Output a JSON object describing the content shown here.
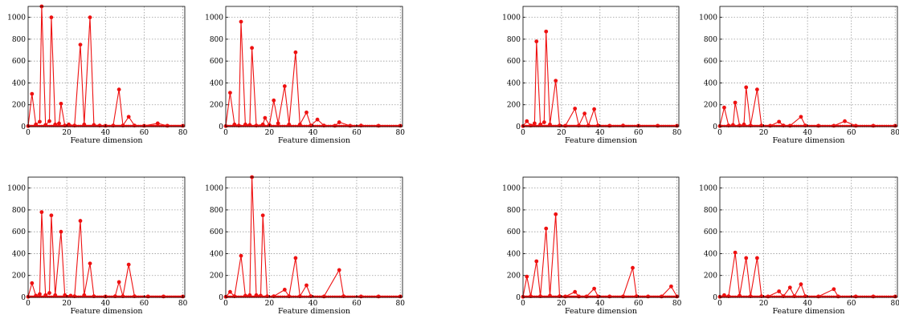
{
  "style": {
    "series_color": "#ee1111",
    "grid_color": "#9a9a9a",
    "axis_color": "#000000",
    "grid": true,
    "marker": "filled-circle"
  },
  "chart_data": [
    {
      "type": "line",
      "xlabel": "Feature dimension",
      "xlim": [
        0,
        81
      ],
      "ylim": [
        0,
        1100
      ],
      "xticks": [
        0,
        20,
        40,
        60,
        80
      ],
      "yticks": [
        0,
        200,
        400,
        600,
        800,
        1000
      ],
      "points": [
        [
          0,
          5
        ],
        [
          2,
          300
        ],
        [
          4,
          20
        ],
        [
          6,
          45
        ],
        [
          7,
          1100
        ],
        [
          9,
          15
        ],
        [
          11,
          50
        ],
        [
          12,
          1000
        ],
        [
          14,
          20
        ],
        [
          16,
          30
        ],
        [
          17,
          210
        ],
        [
          19,
          10
        ],
        [
          21,
          20
        ],
        [
          24,
          10
        ],
        [
          27,
          750
        ],
        [
          29,
          20
        ],
        [
          32,
          1000
        ],
        [
          34,
          15
        ],
        [
          37,
          10
        ],
        [
          40,
          8
        ],
        [
          44,
          10
        ],
        [
          47,
          340
        ],
        [
          49,
          10
        ],
        [
          52,
          90
        ],
        [
          55,
          10
        ],
        [
          60,
          8
        ],
        [
          67,
          30
        ],
        [
          72,
          8
        ],
        [
          80,
          8
        ]
      ]
    },
    {
      "type": "line",
      "xlabel": "Feature dimension",
      "xlim": [
        0,
        81
      ],
      "ylim": [
        0,
        1100
      ],
      "xticks": [
        0,
        20,
        40,
        60,
        80
      ],
      "yticks": [
        0,
        200,
        400,
        600,
        800,
        1000
      ],
      "points": [
        [
          0,
          5
        ],
        [
          2,
          310
        ],
        [
          4,
          20
        ],
        [
          6,
          10
        ],
        [
          7,
          960
        ],
        [
          9,
          20
        ],
        [
          11,
          15
        ],
        [
          12,
          720
        ],
        [
          14,
          10
        ],
        [
          17,
          20
        ],
        [
          18,
          80
        ],
        [
          20,
          15
        ],
        [
          22,
          240
        ],
        [
          24,
          30
        ],
        [
          27,
          370
        ],
        [
          29,
          20
        ],
        [
          32,
          680
        ],
        [
          34,
          20
        ],
        [
          37,
          130
        ],
        [
          39,
          10
        ],
        [
          42,
          65
        ],
        [
          45,
          10
        ],
        [
          50,
          8
        ],
        [
          52,
          40
        ],
        [
          57,
          8
        ],
        [
          62,
          10
        ],
        [
          70,
          8
        ],
        [
          80,
          8
        ]
      ]
    },
    {
      "type": "line",
      "xlabel": "Feature dimension",
      "xlim": [
        0,
        81
      ],
      "ylim": [
        0,
        1100
      ],
      "xticks": [
        0,
        20,
        40,
        60,
        80
      ],
      "yticks": [
        0,
        200,
        400,
        600,
        800,
        1000
      ],
      "points": [
        [
          0,
          5
        ],
        [
          2,
          50
        ],
        [
          4,
          10
        ],
        [
          6,
          30
        ],
        [
          7,
          780
        ],
        [
          9,
          20
        ],
        [
          11,
          40
        ],
        [
          12,
          870
        ],
        [
          14,
          20
        ],
        [
          17,
          420
        ],
        [
          19,
          10
        ],
        [
          22,
          8
        ],
        [
          27,
          165
        ],
        [
          29,
          10
        ],
        [
          32,
          120
        ],
        [
          34,
          10
        ],
        [
          37,
          160
        ],
        [
          39,
          10
        ],
        [
          45,
          8
        ],
        [
          52,
          10
        ],
        [
          60,
          8
        ],
        [
          70,
          8
        ],
        [
          80,
          8
        ]
      ]
    },
    {
      "type": "line",
      "xlabel": "Feature dimension",
      "xlim": [
        0,
        81
      ],
      "ylim": [
        0,
        1100
      ],
      "xticks": [
        0,
        20,
        40,
        60,
        80
      ],
      "yticks": [
        0,
        200,
        400,
        600,
        800,
        1000
      ],
      "points": [
        [
          0,
          5
        ],
        [
          2,
          175
        ],
        [
          4,
          10
        ],
        [
          6,
          15
        ],
        [
          7,
          220
        ],
        [
          9,
          10
        ],
        [
          11,
          20
        ],
        [
          12,
          360
        ],
        [
          14,
          10
        ],
        [
          17,
          340
        ],
        [
          19,
          10
        ],
        [
          23,
          8
        ],
        [
          27,
          45
        ],
        [
          29,
          10
        ],
        [
          32,
          8
        ],
        [
          37,
          90
        ],
        [
          39,
          10
        ],
        [
          45,
          8
        ],
        [
          52,
          8
        ],
        [
          57,
          50
        ],
        [
          62,
          8
        ],
        [
          70,
          8
        ],
        [
          80,
          8
        ]
      ]
    },
    {
      "type": "line",
      "xlabel": "Feature dimension",
      "xlim": [
        0,
        81
      ],
      "ylim": [
        0,
        1100
      ],
      "xticks": [
        0,
        20,
        40,
        60,
        80
      ],
      "yticks": [
        0,
        200,
        400,
        600,
        800,
        1000
      ],
      "points": [
        [
          0,
          5
        ],
        [
          2,
          130
        ],
        [
          4,
          15
        ],
        [
          6,
          30
        ],
        [
          7,
          780
        ],
        [
          9,
          20
        ],
        [
          11,
          40
        ],
        [
          12,
          750
        ],
        [
          14,
          20
        ],
        [
          17,
          600
        ],
        [
          19,
          20
        ],
        [
          22,
          15
        ],
        [
          24,
          10
        ],
        [
          27,
          700
        ],
        [
          29,
          20
        ],
        [
          32,
          310
        ],
        [
          34,
          10
        ],
        [
          40,
          8
        ],
        [
          45,
          10
        ],
        [
          47,
          140
        ],
        [
          49,
          10
        ],
        [
          52,
          300
        ],
        [
          55,
          10
        ],
        [
          62,
          8
        ],
        [
          70,
          8
        ],
        [
          80,
          8
        ]
      ]
    },
    {
      "type": "line",
      "xlabel": "Feature dimension",
      "xlim": [
        0,
        81
      ],
      "ylim": [
        0,
        1100
      ],
      "xticks": [
        0,
        20,
        40,
        60,
        80
      ],
      "yticks": [
        0,
        200,
        400,
        600,
        800,
        1000
      ],
      "points": [
        [
          0,
          5
        ],
        [
          2,
          50
        ],
        [
          4,
          10
        ],
        [
          7,
          380
        ],
        [
          9,
          15
        ],
        [
          11,
          20
        ],
        [
          12,
          1100
        ],
        [
          14,
          20
        ],
        [
          16,
          15
        ],
        [
          17,
          750
        ],
        [
          19,
          10
        ],
        [
          22,
          10
        ],
        [
          27,
          70
        ],
        [
          29,
          10
        ],
        [
          32,
          360
        ],
        [
          34,
          10
        ],
        [
          37,
          110
        ],
        [
          39,
          10
        ],
        [
          45,
          8
        ],
        [
          52,
          250
        ],
        [
          54,
          10
        ],
        [
          62,
          8
        ],
        [
          70,
          8
        ],
        [
          80,
          8
        ]
      ]
    },
    {
      "type": "line",
      "xlabel": "Feature dimension",
      "xlim": [
        0,
        81
      ],
      "ylim": [
        0,
        1100
      ],
      "xticks": [
        0,
        20,
        40,
        60,
        80
      ],
      "yticks": [
        0,
        200,
        400,
        600,
        800,
        1000
      ],
      "points": [
        [
          0,
          5
        ],
        [
          2,
          190
        ],
        [
          4,
          10
        ],
        [
          7,
          330
        ],
        [
          9,
          10
        ],
        [
          12,
          630
        ],
        [
          14,
          15
        ],
        [
          17,
          760
        ],
        [
          19,
          10
        ],
        [
          22,
          8
        ],
        [
          27,
          50
        ],
        [
          29,
          8
        ],
        [
          33,
          8
        ],
        [
          37,
          80
        ],
        [
          39,
          8
        ],
        [
          45,
          8
        ],
        [
          52,
          8
        ],
        [
          57,
          270
        ],
        [
          59,
          10
        ],
        [
          65,
          8
        ],
        [
          72,
          8
        ],
        [
          77,
          100
        ],
        [
          80,
          8
        ]
      ]
    },
    {
      "type": "line",
      "xlabel": "Feature dimension",
      "xlim": [
        0,
        81
      ],
      "ylim": [
        0,
        1100
      ],
      "xticks": [
        0,
        20,
        40,
        60,
        80
      ],
      "yticks": [
        0,
        200,
        400,
        600,
        800,
        1000
      ],
      "points": [
        [
          0,
          5
        ],
        [
          2,
          20
        ],
        [
          4,
          10
        ],
        [
          7,
          410
        ],
        [
          9,
          15
        ],
        [
          12,
          360
        ],
        [
          14,
          10
        ],
        [
          17,
          360
        ],
        [
          19,
          10
        ],
        [
          22,
          8
        ],
        [
          27,
          55
        ],
        [
          29,
          10
        ],
        [
          32,
          90
        ],
        [
          34,
          10
        ],
        [
          37,
          120
        ],
        [
          39,
          10
        ],
        [
          45,
          8
        ],
        [
          52,
          75
        ],
        [
          54,
          8
        ],
        [
          62,
          8
        ],
        [
          70,
          8
        ],
        [
          80,
          8
        ]
      ]
    }
  ]
}
